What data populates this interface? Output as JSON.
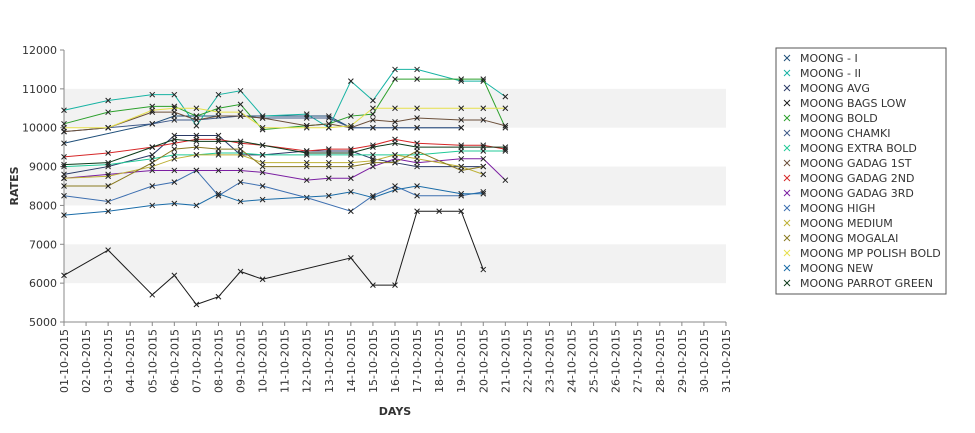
{
  "chart_data": {
    "type": "line",
    "xlabel": "DAYS",
    "ylabel": "RATES",
    "ylim": [
      5000,
      12000
    ],
    "yticks": [
      5000,
      6000,
      7000,
      8000,
      9000,
      10000,
      11000,
      12000
    ],
    "grid": "alternating horizontal bands",
    "legend_position": "right",
    "categories": [
      "01-10-2015",
      "02-10-2015",
      "03-10-2015",
      "04-10-2015",
      "05-10-2015",
      "06-10-2015",
      "07-10-2015",
      "08-10-2015",
      "09-10-2015",
      "10-10-2015",
      "11-10-2015",
      "12-10-2015",
      "13-10-2015",
      "14-10-2015",
      "15-10-2015",
      "16-10-2015",
      "17-10-2015",
      "18-10-2015",
      "19-10-2015",
      "20-10-2015",
      "21-10-2015",
      "22-10-2015",
      "23-10-2015",
      "24-10-2015",
      "25-10-2015",
      "26-10-2015",
      "27-10-2015",
      "28-10-2015",
      "29-10-2015",
      "30-10-2015",
      "31-10-2015"
    ],
    "series": [
      {
        "name": "MOONG - I",
        "color": "#1f4e79",
        "points": [
          [
            0,
            9600
          ],
          [
            4,
            10100
          ],
          [
            5,
            10300
          ],
          [
            6,
            10300
          ],
          [
            9,
            10300
          ],
          [
            11,
            10300
          ],
          [
            12,
            10300
          ],
          [
            13,
            10000
          ],
          [
            14,
            10000
          ],
          [
            15,
            10000
          ],
          [
            16,
            10000
          ],
          [
            18,
            10000
          ]
        ]
      },
      {
        "name": "MOONG - II",
        "color": "#17b3a3",
        "points": [
          [
            0,
            10450
          ],
          [
            2,
            10700
          ],
          [
            4,
            10850
          ],
          [
            5,
            10850
          ],
          [
            6,
            10050
          ],
          [
            7,
            10850
          ],
          [
            8,
            10950
          ],
          [
            9,
            10300
          ],
          [
            11,
            10350
          ],
          [
            12,
            10000
          ],
          [
            13,
            11200
          ],
          [
            14,
            10700
          ],
          [
            15,
            11500
          ],
          [
            16,
            11500
          ],
          [
            18,
            11200
          ],
          [
            19,
            11200
          ],
          [
            20,
            10800
          ]
        ]
      },
      {
        "name": "MOONG AVG",
        "color": "#2b3a67",
        "points": [
          [
            0,
            8800
          ],
          [
            2,
            9000
          ],
          [
            4,
            9300
          ],
          [
            5,
            9800
          ],
          [
            6,
            9800
          ],
          [
            7,
            9800
          ],
          [
            8,
            9300
          ],
          [
            9,
            9300
          ],
          [
            11,
            9400
          ],
          [
            12,
            9400
          ],
          [
            13,
            9400
          ],
          [
            14,
            9200
          ],
          [
            15,
            9100
          ],
          [
            16,
            9000
          ],
          [
            18,
            9000
          ],
          [
            19,
            9000
          ]
        ]
      },
      {
        "name": "MOONG BAGS LOW",
        "color": "#1a1a1a",
        "points": [
          [
            0,
            6200
          ],
          [
            2,
            6850
          ],
          [
            4,
            5700
          ],
          [
            5,
            6200
          ],
          [
            6,
            5450
          ],
          [
            7,
            5650
          ],
          [
            8,
            6300
          ],
          [
            9,
            6100
          ],
          [
            13,
            6650
          ],
          [
            14,
            5950
          ],
          [
            15,
            5950
          ],
          [
            16,
            7850
          ],
          [
            17,
            7850
          ],
          [
            18,
            7850
          ],
          [
            19,
            6350
          ]
        ]
      },
      {
        "name": "MOONG BOLD",
        "color": "#2ca02c",
        "points": [
          [
            0,
            10100
          ],
          [
            2,
            10400
          ],
          [
            4,
            10550
          ],
          [
            5,
            10550
          ],
          [
            6,
            10300
          ],
          [
            7,
            10500
          ],
          [
            8,
            10600
          ],
          [
            9,
            9950
          ],
          [
            11,
            10050
          ],
          [
            12,
            10100
          ],
          [
            13,
            10300
          ],
          [
            14,
            10350
          ],
          [
            15,
            11250
          ],
          [
            16,
            11250
          ],
          [
            18,
            11250
          ],
          [
            19,
            11250
          ],
          [
            20,
            10000
          ]
        ]
      },
      {
        "name": "MOONG CHAMKI",
        "color": "#3f5a8a",
        "points": [
          [
            0,
            9900
          ],
          [
            2,
            10000
          ],
          [
            4,
            10100
          ],
          [
            5,
            10200
          ],
          [
            6,
            10200
          ],
          [
            8,
            10300
          ],
          [
            9,
            10250
          ],
          [
            11,
            10250
          ],
          [
            12,
            10250
          ],
          [
            13,
            10000
          ],
          [
            14,
            10000
          ],
          [
            15,
            10000
          ],
          [
            16,
            10000
          ],
          [
            18,
            10000
          ]
        ]
      },
      {
        "name": "MOONG EXTRA BOLD",
        "color": "#20c997",
        "points": [
          [
            0,
            9000
          ],
          [
            2,
            9050
          ],
          [
            4,
            9200
          ],
          [
            5,
            9300
          ],
          [
            6,
            9300
          ],
          [
            7,
            9350
          ],
          [
            8,
            9350
          ],
          [
            9,
            9300
          ],
          [
            11,
            9300
          ],
          [
            12,
            9300
          ],
          [
            13,
            9300
          ],
          [
            14,
            9300
          ],
          [
            15,
            9300
          ],
          [
            16,
            9300
          ],
          [
            18,
            9400
          ],
          [
            19,
            9400
          ],
          [
            20,
            9400
          ]
        ]
      },
      {
        "name": "MOONG GADAG 1ST",
        "color": "#6b4f3a",
        "points": [
          [
            0,
            9900
          ],
          [
            2,
            10000
          ],
          [
            4,
            10400
          ],
          [
            5,
            10400
          ],
          [
            6,
            10200
          ],
          [
            7,
            10300
          ],
          [
            8,
            10300
          ],
          [
            9,
            10250
          ],
          [
            11,
            10050
          ],
          [
            12,
            10100
          ],
          [
            13,
            10000
          ],
          [
            14,
            10200
          ],
          [
            15,
            10150
          ],
          [
            16,
            10250
          ],
          [
            18,
            10200
          ],
          [
            19,
            10200
          ],
          [
            20,
            10050
          ]
        ]
      },
      {
        "name": "MOONG GADAG 2ND",
        "color": "#d62728",
        "points": [
          [
            0,
            9250
          ],
          [
            2,
            9350
          ],
          [
            4,
            9500
          ],
          [
            5,
            9600
          ],
          [
            6,
            9700
          ],
          [
            7,
            9700
          ],
          [
            8,
            9600
          ],
          [
            9,
            9550
          ],
          [
            11,
            9400
          ],
          [
            12,
            9450
          ],
          [
            13,
            9450
          ],
          [
            14,
            9550
          ],
          [
            15,
            9700
          ],
          [
            16,
            9600
          ],
          [
            18,
            9550
          ],
          [
            19,
            9550
          ],
          [
            20,
            9450
          ]
        ]
      },
      {
        "name": "MOONG GADAG 3RD",
        "color": "#7b1fa2",
        "points": [
          [
            0,
            8700
          ],
          [
            2,
            8800
          ],
          [
            4,
            8900
          ],
          [
            5,
            8900
          ],
          [
            6,
            8900
          ],
          [
            7,
            8900
          ],
          [
            8,
            8900
          ],
          [
            9,
            8850
          ],
          [
            11,
            8650
          ],
          [
            12,
            8700
          ],
          [
            13,
            8700
          ],
          [
            14,
            9000
          ],
          [
            15,
            9200
          ],
          [
            16,
            9100
          ],
          [
            18,
            9200
          ],
          [
            19,
            9200
          ],
          [
            20,
            8650
          ]
        ]
      },
      {
        "name": "MOONG HIGH",
        "color": "#3d6fb0",
        "points": [
          [
            0,
            8250
          ],
          [
            2,
            8100
          ],
          [
            4,
            8500
          ],
          [
            5,
            8600
          ],
          [
            6,
            8900
          ],
          [
            7,
            8250
          ],
          [
            8,
            8600
          ],
          [
            9,
            8500
          ],
          [
            11,
            8200
          ],
          [
            13,
            7850
          ],
          [
            14,
            8250
          ],
          [
            15,
            8500
          ],
          [
            16,
            8250
          ],
          [
            18,
            8250
          ],
          [
            19,
            8350
          ]
        ]
      },
      {
        "name": "MOONG MEDIUM",
        "color": "#bdb035",
        "points": [
          [
            0,
            8700
          ],
          [
            2,
            8750
          ],
          [
            4,
            9000
          ],
          [
            5,
            9200
          ],
          [
            6,
            9300
          ],
          [
            7,
            9300
          ],
          [
            8,
            9300
          ],
          [
            9,
            9100
          ],
          [
            11,
            9100
          ],
          [
            12,
            9100
          ],
          [
            13,
            9100
          ],
          [
            14,
            9150
          ],
          [
            15,
            9300
          ],
          [
            16,
            9200
          ],
          [
            18,
            9000
          ],
          [
            19,
            8800
          ]
        ]
      },
      {
        "name": "MOONG MOGALAI",
        "color": "#8a7a20",
        "points": [
          [
            0,
            8500
          ],
          [
            2,
            8500
          ],
          [
            4,
            9100
          ],
          [
            5,
            9450
          ],
          [
            6,
            9500
          ],
          [
            7,
            9450
          ],
          [
            8,
            9450
          ],
          [
            9,
            9000
          ],
          [
            11,
            9000
          ],
          [
            12,
            9000
          ],
          [
            13,
            9000
          ],
          [
            14,
            9100
          ],
          [
            15,
            9100
          ],
          [
            16,
            9400
          ],
          [
            18,
            8900
          ],
          [
            19,
            9000
          ]
        ]
      },
      {
        "name": "MOONG MP POLISH BOLD",
        "color": "#e6e04a",
        "points": [
          [
            0,
            10000
          ],
          [
            2,
            10000
          ],
          [
            4,
            10450
          ],
          [
            5,
            10500
          ],
          [
            6,
            10500
          ],
          [
            7,
            10400
          ],
          [
            8,
            10400
          ],
          [
            9,
            10000
          ],
          [
            11,
            10000
          ],
          [
            12,
            10000
          ],
          [
            13,
            10050
          ],
          [
            14,
            10500
          ],
          [
            15,
            10500
          ],
          [
            16,
            10500
          ],
          [
            18,
            10500
          ],
          [
            19,
            10500
          ],
          [
            20,
            10500
          ]
        ]
      },
      {
        "name": "MOONG NEW",
        "color": "#1b6ca8",
        "points": [
          [
            0,
            7750
          ],
          [
            2,
            7850
          ],
          [
            4,
            8000
          ],
          [
            5,
            8050
          ],
          [
            6,
            8000
          ],
          [
            7,
            8300
          ],
          [
            8,
            8100
          ],
          [
            9,
            8150
          ],
          [
            12,
            8250
          ],
          [
            13,
            8350
          ],
          [
            14,
            8200
          ],
          [
            15,
            8400
          ],
          [
            16,
            8500
          ],
          [
            18,
            8300
          ],
          [
            19,
            8300
          ]
        ]
      },
      {
        "name": "MOONG PARROT GREEN",
        "color": "#0d3b1a",
        "points": [
          [
            0,
            9050
          ],
          [
            2,
            9100
          ],
          [
            4,
            9500
          ],
          [
            5,
            9700
          ],
          [
            6,
            9650
          ],
          [
            7,
            9650
          ],
          [
            8,
            9650
          ],
          [
            9,
            9550
          ],
          [
            11,
            9350
          ],
          [
            12,
            9350
          ],
          [
            13,
            9350
          ],
          [
            14,
            9500
          ],
          [
            15,
            9600
          ],
          [
            16,
            9500
          ],
          [
            18,
            9500
          ],
          [
            19,
            9500
          ],
          [
            20,
            9500
          ]
        ]
      }
    ]
  }
}
